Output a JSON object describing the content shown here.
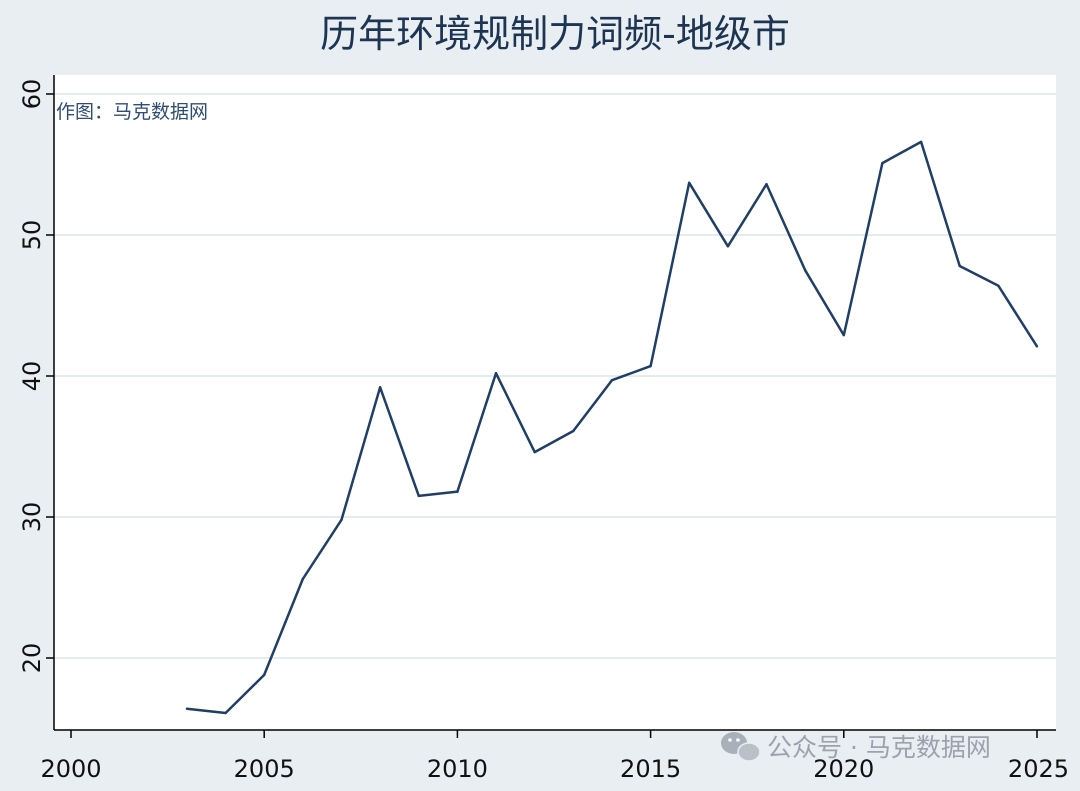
{
  "chart_data": {
    "type": "line",
    "title": "历年环境规制力词频-地级市",
    "annotation": "作图：马克数据网",
    "watermark": "公众号 · 马克数据网",
    "xlabel": "",
    "ylabel": "",
    "xlim": [
      2000,
      2025
    ],
    "ylim": [
      15,
      60
    ],
    "x_ticks": [
      2000,
      2005,
      2010,
      2015,
      2020,
      2025
    ],
    "y_ticks": [
      20,
      30,
      40,
      50,
      60
    ],
    "grid": true,
    "colors": {
      "line": "#1f3f66",
      "plot_bg": "#ffffff",
      "page_bg": "#e9eef3",
      "grid": "#e4ebf1"
    },
    "series": [
      {
        "x": [
          2003,
          2004,
          2005,
          2006,
          2007,
          2008,
          2009,
          2010,
          2011,
          2012,
          2013,
          2014,
          2015,
          2016,
          2017,
          2018,
          2019,
          2020,
          2021,
          2022,
          2023,
          2024,
          2025
        ],
        "values": [
          16.4,
          16.1,
          18.8,
          25.6,
          29.8,
          39.2,
          31.5,
          31.8,
          40.2,
          34.6,
          36.1,
          39.7,
          40.7,
          53.7,
          49.2,
          53.6,
          47.5,
          42.9,
          55.1,
          56.6,
          47.8,
          46.4,
          42.1
        ]
      }
    ]
  }
}
